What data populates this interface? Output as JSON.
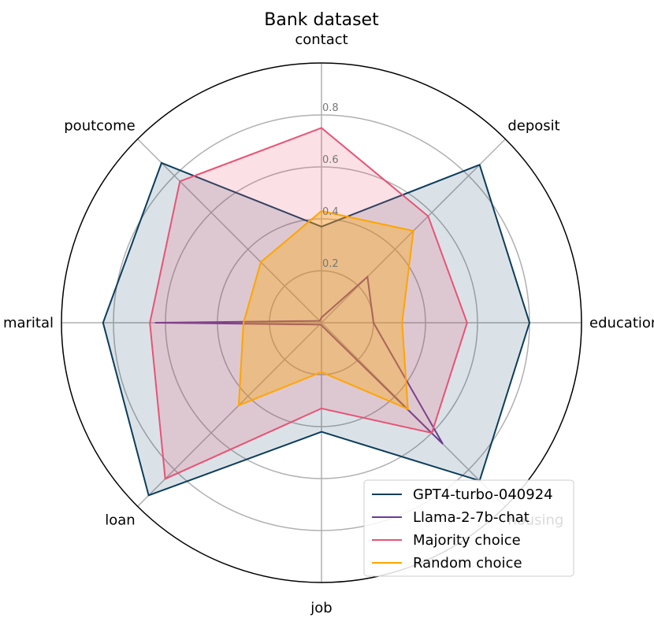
{
  "chart_data": {
    "type": "radar",
    "title": "Bank dataset",
    "categories": [
      "contact",
      "deposit",
      "education",
      "housing",
      "job",
      "loan",
      "marital",
      "poutcome"
    ],
    "rticks": [
      0.2,
      0.4,
      0.6,
      0.8
    ],
    "rticklabels": [
      "0.2",
      "0.4",
      "0.6",
      "0.8"
    ],
    "rlim": [
      0,
      1.0
    ],
    "grid": true,
    "legend_position": "bottom-right",
    "series": [
      {
        "name": "GPT4-turbo-040924",
        "color": "#0b3d5c",
        "fill_alpha": 0.15,
        "values": [
          0.37,
          0.86,
          0.8,
          0.86,
          0.42,
          0.94,
          0.84,
          0.87
        ]
      },
      {
        "name": "Llama-2-7b-chat",
        "color": "#6a3d8f",
        "fill_alpha": 0.0,
        "values": [
          0.02,
          0.25,
          0.2,
          0.66,
          0.01,
          0.01,
          0.64,
          0.01
        ]
      },
      {
        "name": "Majority choice",
        "color": "#e85375",
        "fill_alpha": 0.18,
        "values": [
          0.75,
          0.58,
          0.56,
          0.6,
          0.33,
          0.85,
          0.66,
          0.77
        ]
      },
      {
        "name": "Random choice",
        "color": "#ffa500",
        "fill_alpha": 0.35,
        "values": [
          0.43,
          0.5,
          0.31,
          0.47,
          0.19,
          0.45,
          0.3,
          0.33
        ]
      }
    ]
  }
}
